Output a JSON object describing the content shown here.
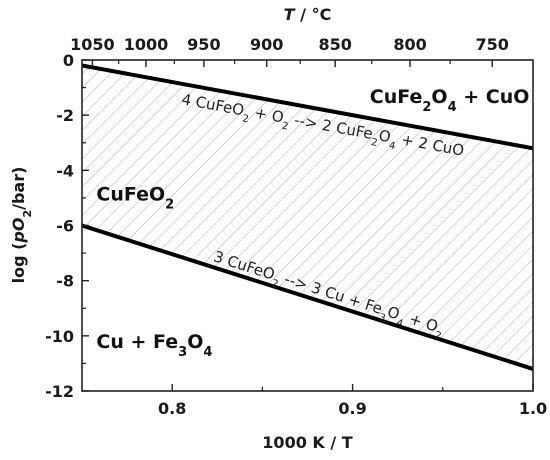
{
  "chart_data": {
    "type": "line",
    "xlabel": "1000 K / T",
    "ylabel_parts": [
      "log (",
      "p",
      "O",
      "2",
      "/bar)"
    ],
    "top_axis_label_parts": [
      "T",
      " / °C"
    ],
    "xlim": [
      0.75,
      1.0
    ],
    "ylim": [
      -12,
      0
    ],
    "x_ticks": [
      0.8,
      0.9,
      1.0
    ],
    "x_tick_labels": [
      "0.8",
      "0.9",
      "1.0"
    ],
    "y_ticks": [
      0,
      -2,
      -4,
      -6,
      -8,
      -10,
      -12
    ],
    "y_tick_labels": [
      "0",
      "-2",
      "-4",
      "-6",
      "-8",
      "-10",
      "-12"
    ],
    "top_ticks_celsius": [
      1050,
      1000,
      950,
      900,
      850,
      800,
      750
    ],
    "top_tick_labels": [
      "1050",
      "1000",
      "950",
      "900",
      "850",
      "800",
      "750"
    ],
    "series": [
      {
        "x": [
          0.75,
          1.0
        ],
        "y": [
          -0.2,
          -3.2
        ]
      },
      {
        "x": [
          0.75,
          1.0
        ],
        "y": [
          -6.0,
          -11.2
        ]
      }
    ],
    "shaded_region": "between series",
    "regions": [
      {
        "id": "cufe2o4-cuo",
        "parts": [
          [
            "CuFe",
            "n"
          ],
          [
            "2",
            "sub"
          ],
          [
            "O",
            "n"
          ],
          [
            "4",
            "sub"
          ],
          [
            " + CuO",
            "n"
          ]
        ]
      },
      {
        "id": "cufeo2",
        "parts": [
          [
            "CuFeO",
            "n"
          ],
          [
            "2",
            "sub"
          ]
        ]
      },
      {
        "id": "cu-fe3o4",
        "parts": [
          [
            "Cu + Fe",
            "n"
          ],
          [
            "3",
            "sub"
          ],
          [
            "O",
            "n"
          ],
          [
            "4",
            "sub"
          ]
        ]
      }
    ],
    "reactions": [
      {
        "id": "upper-reaction",
        "parts": [
          [
            "4 CuFeO",
            "n"
          ],
          [
            "2",
            "sub"
          ],
          [
            " + O",
            "n"
          ],
          [
            "2",
            "sub"
          ],
          [
            " --> 2 CuFe",
            "n"
          ],
          [
            "2",
            "sub"
          ],
          [
            "O",
            "n"
          ],
          [
            "4",
            "sub"
          ],
          [
            " + 2 CuO",
            "n"
          ]
        ]
      },
      {
        "id": "lower-reaction",
        "parts": [
          [
            "3 CuFeO",
            "n"
          ],
          [
            "2",
            "sub"
          ],
          [
            " --> 3 Cu + Fe",
            "n"
          ],
          [
            "3",
            "sub"
          ],
          [
            "O",
            "n"
          ],
          [
            "4",
            "sub"
          ],
          [
            " + O",
            "n"
          ],
          [
            "2",
            "sub"
          ]
        ]
      }
    ],
    "colors": {
      "line": "#000000",
      "hatch": "#b5b5b5"
    },
    "grid": false,
    "legend": "none"
  }
}
